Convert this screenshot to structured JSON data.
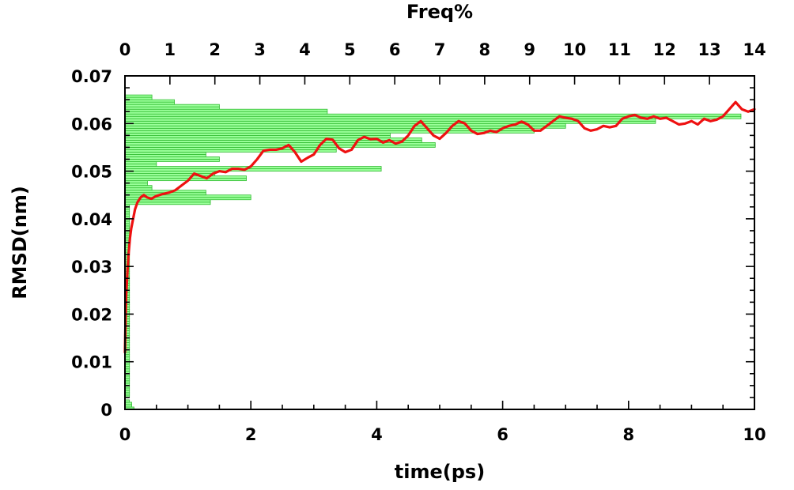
{
  "chart_data": {
    "type": "line",
    "xlabel": "time(ps)",
    "ylabel": "RMSD(nm)",
    "top_axis_label": "Freq%",
    "xlim": [
      0,
      10
    ],
    "ylim": [
      0,
      0.07
    ],
    "top_xlim": [
      0,
      14
    ],
    "grid": false,
    "x_ticks": [
      "0",
      "2",
      "4",
      "6",
      "8",
      "10"
    ],
    "y_ticks": [
      "0",
      "0.01",
      "0.02",
      "0.03",
      "0.04",
      "0.05",
      "0.06",
      "0.07"
    ],
    "top_ticks": [
      "0",
      "1",
      "2",
      "3",
      "4",
      "5",
      "6",
      "7",
      "8",
      "9",
      "10",
      "11",
      "12",
      "13",
      "14"
    ],
    "colors": {
      "line": "#ee1111",
      "bar_fill": "#99ff99",
      "bar_edge": "#33bb33"
    },
    "series": [
      {
        "type": "line",
        "x": [
          0,
          0.01,
          0.02,
          0.04,
          0.06,
          0.08,
          0.1,
          0.13,
          0.16,
          0.2,
          0.25,
          0.3,
          0.35,
          0.42,
          0.5,
          0.6,
          0.7,
          0.8,
          0.9,
          1.0,
          1.1,
          1.2,
          1.3,
          1.4,
          1.5,
          1.6,
          1.7,
          1.8,
          1.9,
          2.0,
          2.1,
          2.2,
          2.3,
          2.4,
          2.5,
          2.6,
          2.7,
          2.8,
          2.9,
          3.0,
          3.1,
          3.2,
          3.3,
          3.4,
          3.5,
          3.6,
          3.7,
          3.8,
          3.9,
          4.0,
          4.1,
          4.2,
          4.3,
          4.4,
          4.5,
          4.6,
          4.7,
          4.8,
          4.9,
          5.0,
          5.1,
          5.2,
          5.3,
          5.4,
          5.5,
          5.6,
          5.7,
          5.8,
          5.9,
          6.0,
          6.1,
          6.2,
          6.3,
          6.4,
          6.5,
          6.6,
          6.7,
          6.8,
          6.9,
          7.0,
          7.1,
          7.2,
          7.3,
          7.4,
          7.5,
          7.6,
          7.7,
          7.8,
          7.9,
          8.0,
          8.1,
          8.2,
          8.3,
          8.4,
          8.5,
          8.6,
          8.7,
          8.8,
          8.9,
          9.0,
          9.1,
          9.2,
          9.3,
          9.4,
          9.5,
          9.6,
          9.7,
          9.8,
          9.9,
          10.0
        ],
        "y": [
          0.012,
          0.019,
          0.024,
          0.029,
          0.033,
          0.036,
          0.038,
          0.04,
          0.042,
          0.0435,
          0.0445,
          0.045,
          0.0445,
          0.0442,
          0.0448,
          0.0452,
          0.0455,
          0.046,
          0.047,
          0.048,
          0.0495,
          0.049,
          0.0485,
          0.0495,
          0.05,
          0.0498,
          0.0505,
          0.0505,
          0.0503,
          0.051,
          0.0525,
          0.0543,
          0.0545,
          0.0545,
          0.0548,
          0.0555,
          0.054,
          0.052,
          0.0528,
          0.0535,
          0.0555,
          0.0568,
          0.0566,
          0.0548,
          0.054,
          0.0545,
          0.0565,
          0.0572,
          0.0567,
          0.0568,
          0.056,
          0.0565,
          0.0558,
          0.0562,
          0.0575,
          0.0595,
          0.0605,
          0.059,
          0.0575,
          0.0568,
          0.058,
          0.0595,
          0.0605,
          0.06,
          0.0585,
          0.0578,
          0.058,
          0.0585,
          0.0582,
          0.059,
          0.0595,
          0.0598,
          0.0604,
          0.0598,
          0.0585,
          0.0585,
          0.0595,
          0.0605,
          0.0615,
          0.0612,
          0.061,
          0.0605,
          0.059,
          0.0585,
          0.0588,
          0.0595,
          0.0592,
          0.0595,
          0.061,
          0.0615,
          0.0618,
          0.0612,
          0.061,
          0.0615,
          0.061,
          0.0612,
          0.0605,
          0.0598,
          0.06,
          0.0605,
          0.0598,
          0.061,
          0.0605,
          0.0608,
          0.0615,
          0.063,
          0.0645,
          0.063,
          0.0625,
          0.063
        ]
      },
      {
        "type": "histogram",
        "axis": "top",
        "bins": [
          [
            0.0,
            0.0005,
            0.2
          ],
          [
            0.0005,
            0.001,
            0.15
          ],
          [
            0.001,
            0.0015,
            0.15
          ],
          [
            0.0015,
            0.002,
            0.1
          ],
          [
            0.0025,
            0.003,
            0.1
          ],
          [
            0.003,
            0.0035,
            0.1
          ],
          [
            0.0035,
            0.004,
            0.1
          ],
          [
            0.004,
            0.0045,
            0.1
          ],
          [
            0.0045,
            0.005,
            0.1
          ],
          [
            0.005,
            0.0055,
            0.1
          ],
          [
            0.0055,
            0.006,
            0.1
          ],
          [
            0.006,
            0.0065,
            0.1
          ],
          [
            0.0065,
            0.007,
            0.1
          ],
          [
            0.007,
            0.0075,
            0.1
          ],
          [
            0.0075,
            0.008,
            0.1
          ],
          [
            0.008,
            0.0085,
            0.1
          ],
          [
            0.0085,
            0.009,
            0.1
          ],
          [
            0.009,
            0.0095,
            0.1
          ],
          [
            0.0095,
            0.01,
            0.1
          ],
          [
            0.01,
            0.0105,
            0.1
          ],
          [
            0.0105,
            0.011,
            0.1
          ],
          [
            0.011,
            0.0115,
            0.1
          ],
          [
            0.0115,
            0.012,
            0.1
          ],
          [
            0.012,
            0.0125,
            0.1
          ],
          [
            0.0125,
            0.013,
            0.1
          ],
          [
            0.013,
            0.0135,
            0.1
          ],
          [
            0.0135,
            0.014,
            0.1
          ],
          [
            0.014,
            0.0145,
            0.1
          ],
          [
            0.0145,
            0.015,
            0.1
          ],
          [
            0.015,
            0.0155,
            0.1
          ],
          [
            0.0155,
            0.016,
            0.1
          ],
          [
            0.016,
            0.0165,
            0.1
          ],
          [
            0.0165,
            0.017,
            0.1
          ],
          [
            0.017,
            0.0175,
            0.1
          ],
          [
            0.0175,
            0.018,
            0.1
          ],
          [
            0.018,
            0.0185,
            0.1
          ],
          [
            0.0185,
            0.019,
            0.1
          ],
          [
            0.019,
            0.0195,
            0.1
          ],
          [
            0.0195,
            0.02,
            0.1
          ],
          [
            0.02,
            0.0205,
            0.1
          ],
          [
            0.0205,
            0.021,
            0.1
          ],
          [
            0.021,
            0.0215,
            0.1
          ],
          [
            0.0215,
            0.022,
            0.1
          ],
          [
            0.022,
            0.0225,
            0.1
          ],
          [
            0.0225,
            0.023,
            0.1
          ],
          [
            0.023,
            0.0235,
            0.1
          ],
          [
            0.0235,
            0.024,
            0.1
          ],
          [
            0.024,
            0.0245,
            0.1
          ],
          [
            0.0245,
            0.025,
            0.1
          ],
          [
            0.025,
            0.0255,
            0.1
          ],
          [
            0.0255,
            0.026,
            0.1
          ],
          [
            0.026,
            0.0265,
            0.1
          ],
          [
            0.0265,
            0.027,
            0.1
          ],
          [
            0.027,
            0.0275,
            0.1
          ],
          [
            0.0275,
            0.028,
            0.1
          ],
          [
            0.028,
            0.0285,
            0.1
          ],
          [
            0.0285,
            0.029,
            0.1
          ],
          [
            0.029,
            0.0295,
            0.1
          ],
          [
            0.0295,
            0.03,
            0.1
          ],
          [
            0.03,
            0.0305,
            0.1
          ],
          [
            0.0305,
            0.031,
            0.1
          ],
          [
            0.031,
            0.0315,
            0.1
          ],
          [
            0.0315,
            0.032,
            0.1
          ],
          [
            0.032,
            0.0325,
            0.1
          ],
          [
            0.0325,
            0.033,
            0.1
          ],
          [
            0.033,
            0.0335,
            0.1
          ],
          [
            0.0335,
            0.034,
            0.1
          ],
          [
            0.034,
            0.0345,
            0.1
          ],
          [
            0.0345,
            0.035,
            0.1
          ],
          [
            0.035,
            0.0355,
            0.1
          ],
          [
            0.0355,
            0.036,
            0.1
          ],
          [
            0.036,
            0.0365,
            0.1
          ],
          [
            0.0365,
            0.037,
            0.1
          ],
          [
            0.037,
            0.0375,
            0.1
          ],
          [
            0.0375,
            0.038,
            0.1
          ],
          [
            0.038,
            0.0385,
            0.1
          ],
          [
            0.0385,
            0.039,
            0.1
          ],
          [
            0.039,
            0.0395,
            0.1
          ],
          [
            0.0395,
            0.04,
            0.1
          ],
          [
            0.04,
            0.0405,
            0.1
          ],
          [
            0.0405,
            0.041,
            0.1
          ],
          [
            0.041,
            0.0415,
            0.1
          ],
          [
            0.0415,
            0.042,
            0.1
          ],
          [
            0.042,
            0.0425,
            0.1
          ],
          [
            0.0425,
            0.043,
            0.1
          ],
          [
            0.043,
            0.0435,
            1.9
          ],
          [
            0.0435,
            0.044,
            1.9
          ],
          [
            0.044,
            0.0445,
            2.8
          ],
          [
            0.0445,
            0.045,
            2.8
          ],
          [
            0.045,
            0.0455,
            1.8
          ],
          [
            0.0455,
            0.046,
            1.8
          ],
          [
            0.046,
            0.0465,
            0.6
          ],
          [
            0.0465,
            0.047,
            0.6
          ],
          [
            0.047,
            0.0475,
            0.5
          ],
          [
            0.0475,
            0.048,
            0.5
          ],
          [
            0.048,
            0.0485,
            2.7
          ],
          [
            0.0485,
            0.049,
            2.7
          ],
          [
            0.049,
            0.0495,
            2.0
          ],
          [
            0.0495,
            0.05,
            2.0
          ],
          [
            0.05,
            0.0505,
            5.7
          ],
          [
            0.0505,
            0.051,
            5.7
          ],
          [
            0.051,
            0.0515,
            0.7
          ],
          [
            0.0515,
            0.052,
            0.7
          ],
          [
            0.052,
            0.0525,
            2.1
          ],
          [
            0.0525,
            0.053,
            2.1
          ],
          [
            0.053,
            0.0535,
            1.8
          ],
          [
            0.0535,
            0.054,
            1.8
          ],
          [
            0.054,
            0.0545,
            4.7
          ],
          [
            0.0545,
            0.055,
            4.7
          ],
          [
            0.055,
            0.0555,
            6.9
          ],
          [
            0.0555,
            0.056,
            6.9
          ],
          [
            0.056,
            0.0565,
            6.6
          ],
          [
            0.0565,
            0.057,
            6.6
          ],
          [
            0.057,
            0.0575,
            5.9
          ],
          [
            0.0575,
            0.058,
            5.9
          ],
          [
            0.058,
            0.0585,
            9.1
          ],
          [
            0.0585,
            0.059,
            9.1
          ],
          [
            0.059,
            0.0595,
            9.8
          ],
          [
            0.0595,
            0.06,
            9.8
          ],
          [
            0.06,
            0.0605,
            11.8
          ],
          [
            0.0605,
            0.061,
            11.8
          ],
          [
            0.061,
            0.0615,
            13.7
          ],
          [
            0.0615,
            0.062,
            13.7
          ],
          [
            0.062,
            0.0625,
            4.5
          ],
          [
            0.0625,
            0.063,
            4.5
          ],
          [
            0.063,
            0.0635,
            2.1
          ],
          [
            0.0635,
            0.064,
            2.1
          ],
          [
            0.064,
            0.0645,
            1.1
          ],
          [
            0.0645,
            0.065,
            1.1
          ],
          [
            0.065,
            0.0655,
            0.6
          ],
          [
            0.0655,
            0.066,
            0.6
          ]
        ]
      }
    ]
  }
}
